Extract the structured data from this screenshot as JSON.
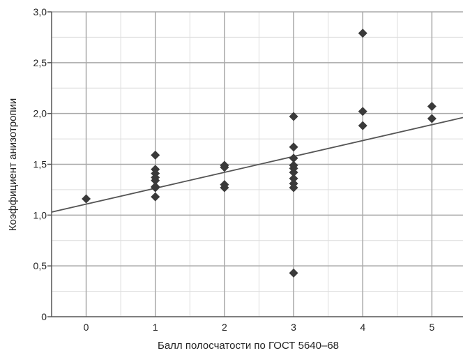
{
  "chart_data": {
    "type": "scatter",
    "title": "",
    "xlabel": "Балл полосчатости по ГОСТ 5640–68",
    "ylabel": "Коэффициент анизотропии",
    "xlim": [
      -0.5,
      5.45
    ],
    "ylim": [
      0,
      3.0
    ],
    "x_ticks": [
      0,
      1,
      2,
      3,
      4,
      5
    ],
    "x_tick_labels": [
      "0",
      "1",
      "2",
      "3",
      "4",
      "5"
    ],
    "y_ticks": [
      0,
      0.5,
      1.0,
      1.5,
      2.0,
      2.5,
      3.0
    ],
    "y_tick_labels": [
      "0",
      "0,5",
      "1,0",
      "1,5",
      "2,0",
      "2,5",
      "3,0"
    ],
    "grid": true,
    "legend": "none",
    "colors": {
      "points": "#3a3a3a",
      "trend_line": "#555555",
      "major_grid": "#a8a8a8",
      "minor_grid": "#dcdcdc",
      "axis": "#555555"
    },
    "series": [
      {
        "marker": "diamond",
        "points": [
          {
            "x": 0,
            "y": 1.16
          },
          {
            "x": 1,
            "y": 1.59
          },
          {
            "x": 1,
            "y": 1.45
          },
          {
            "x": 1,
            "y": 1.41
          },
          {
            "x": 1,
            "y": 1.37
          },
          {
            "x": 1,
            "y": 1.34
          },
          {
            "x": 1,
            "y": 1.28
          },
          {
            "x": 1,
            "y": 1.27
          },
          {
            "x": 1,
            "y": 1.18
          },
          {
            "x": 2,
            "y": 1.49
          },
          {
            "x": 2,
            "y": 1.47
          },
          {
            "x": 2,
            "y": 1.3
          },
          {
            "x": 2,
            "y": 1.27
          },
          {
            "x": 3,
            "y": 1.97
          },
          {
            "x": 3,
            "y": 1.67
          },
          {
            "x": 3,
            "y": 1.56
          },
          {
            "x": 3,
            "y": 1.49
          },
          {
            "x": 3,
            "y": 1.46
          },
          {
            "x": 3,
            "y": 1.42
          },
          {
            "x": 3,
            "y": 1.36
          },
          {
            "x": 3,
            "y": 1.31
          },
          {
            "x": 3,
            "y": 1.27
          },
          {
            "x": 3,
            "y": 0.43
          },
          {
            "x": 4,
            "y": 2.79
          },
          {
            "x": 4,
            "y": 2.02
          },
          {
            "x": 4,
            "y": 1.88
          },
          {
            "x": 5,
            "y": 2.07
          },
          {
            "x": 5,
            "y": 1.95
          }
        ]
      }
    ],
    "trend_line": {
      "type": "linear",
      "from": {
        "x": -0.5,
        "y": 1.03
      },
      "to": {
        "x": 5.45,
        "y": 1.96
      }
    }
  }
}
